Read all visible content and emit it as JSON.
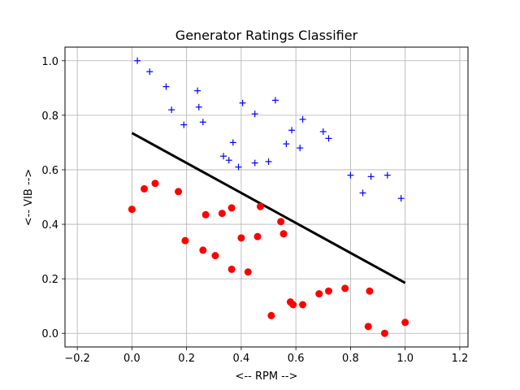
{
  "chart_data": {
    "type": "scatter",
    "title": "Generator Ratings Classifier",
    "xlabel": "<-- RPM -->",
    "ylabel": "<-- VIB -->",
    "xlim": [
      -0.245,
      1.23
    ],
    "ylim": [
      -0.05,
      1.05
    ],
    "xticks": [
      -0.2,
      0.0,
      0.2,
      0.4,
      0.6,
      0.8,
      1.0,
      1.2
    ],
    "xtick_labels": [
      "−0.2",
      "0.0",
      "0.2",
      "0.4",
      "0.6",
      "0.8",
      "1.0",
      "1.2"
    ],
    "yticks": [
      0.0,
      0.2,
      0.4,
      0.6,
      0.8,
      1.0
    ],
    "ytick_labels": [
      "0.0",
      "0.2",
      "0.4",
      "0.6",
      "0.8",
      "1.0"
    ],
    "grid": true,
    "series": [
      {
        "marker": "plus",
        "color": "#0000ff",
        "points": [
          [
            0.02,
            1.0
          ],
          [
            0.065,
            0.96
          ],
          [
            0.125,
            0.905
          ],
          [
            0.145,
            0.82
          ],
          [
            0.19,
            0.765
          ],
          [
            0.24,
            0.89
          ],
          [
            0.245,
            0.83
          ],
          [
            0.26,
            0.775
          ],
          [
            0.335,
            0.65
          ],
          [
            0.355,
            0.635
          ],
          [
            0.37,
            0.7
          ],
          [
            0.39,
            0.61
          ],
          [
            0.405,
            0.845
          ],
          [
            0.45,
            0.805
          ],
          [
            0.45,
            0.625
          ],
          [
            0.5,
            0.63
          ],
          [
            0.525,
            0.855
          ],
          [
            0.565,
            0.695
          ],
          [
            0.585,
            0.745
          ],
          [
            0.615,
            0.68
          ],
          [
            0.625,
            0.785
          ],
          [
            0.7,
            0.74
          ],
          [
            0.72,
            0.715
          ],
          [
            0.8,
            0.58
          ],
          [
            0.845,
            0.515
          ],
          [
            0.875,
            0.575
          ],
          [
            0.935,
            0.58
          ],
          [
            0.985,
            0.495
          ]
        ]
      },
      {
        "marker": "circle",
        "color": "#ff0000",
        "points": [
          [
            0.0,
            0.455
          ],
          [
            0.045,
            0.53
          ],
          [
            0.085,
            0.55
          ],
          [
            0.17,
            0.52
          ],
          [
            0.195,
            0.34
          ],
          [
            0.26,
            0.305
          ],
          [
            0.27,
            0.435
          ],
          [
            0.305,
            0.285
          ],
          [
            0.33,
            0.44
          ],
          [
            0.365,
            0.46
          ],
          [
            0.365,
            0.235
          ],
          [
            0.4,
            0.35
          ],
          [
            0.425,
            0.225
          ],
          [
            0.46,
            0.355
          ],
          [
            0.47,
            0.465
          ],
          [
            0.51,
            0.065
          ],
          [
            0.545,
            0.41
          ],
          [
            0.555,
            0.365
          ],
          [
            0.58,
            0.115
          ],
          [
            0.59,
            0.105
          ],
          [
            0.625,
            0.105
          ],
          [
            0.685,
            0.145
          ],
          [
            0.72,
            0.155
          ],
          [
            0.78,
            0.165
          ],
          [
            0.865,
            0.025
          ],
          [
            0.87,
            0.155
          ],
          [
            0.925,
            0.0
          ],
          [
            1.0,
            0.04
          ]
        ]
      }
    ],
    "boundary_line": {
      "x": [
        0.0,
        1.0
      ],
      "y": [
        0.735,
        0.185
      ],
      "color": "#000000"
    }
  }
}
